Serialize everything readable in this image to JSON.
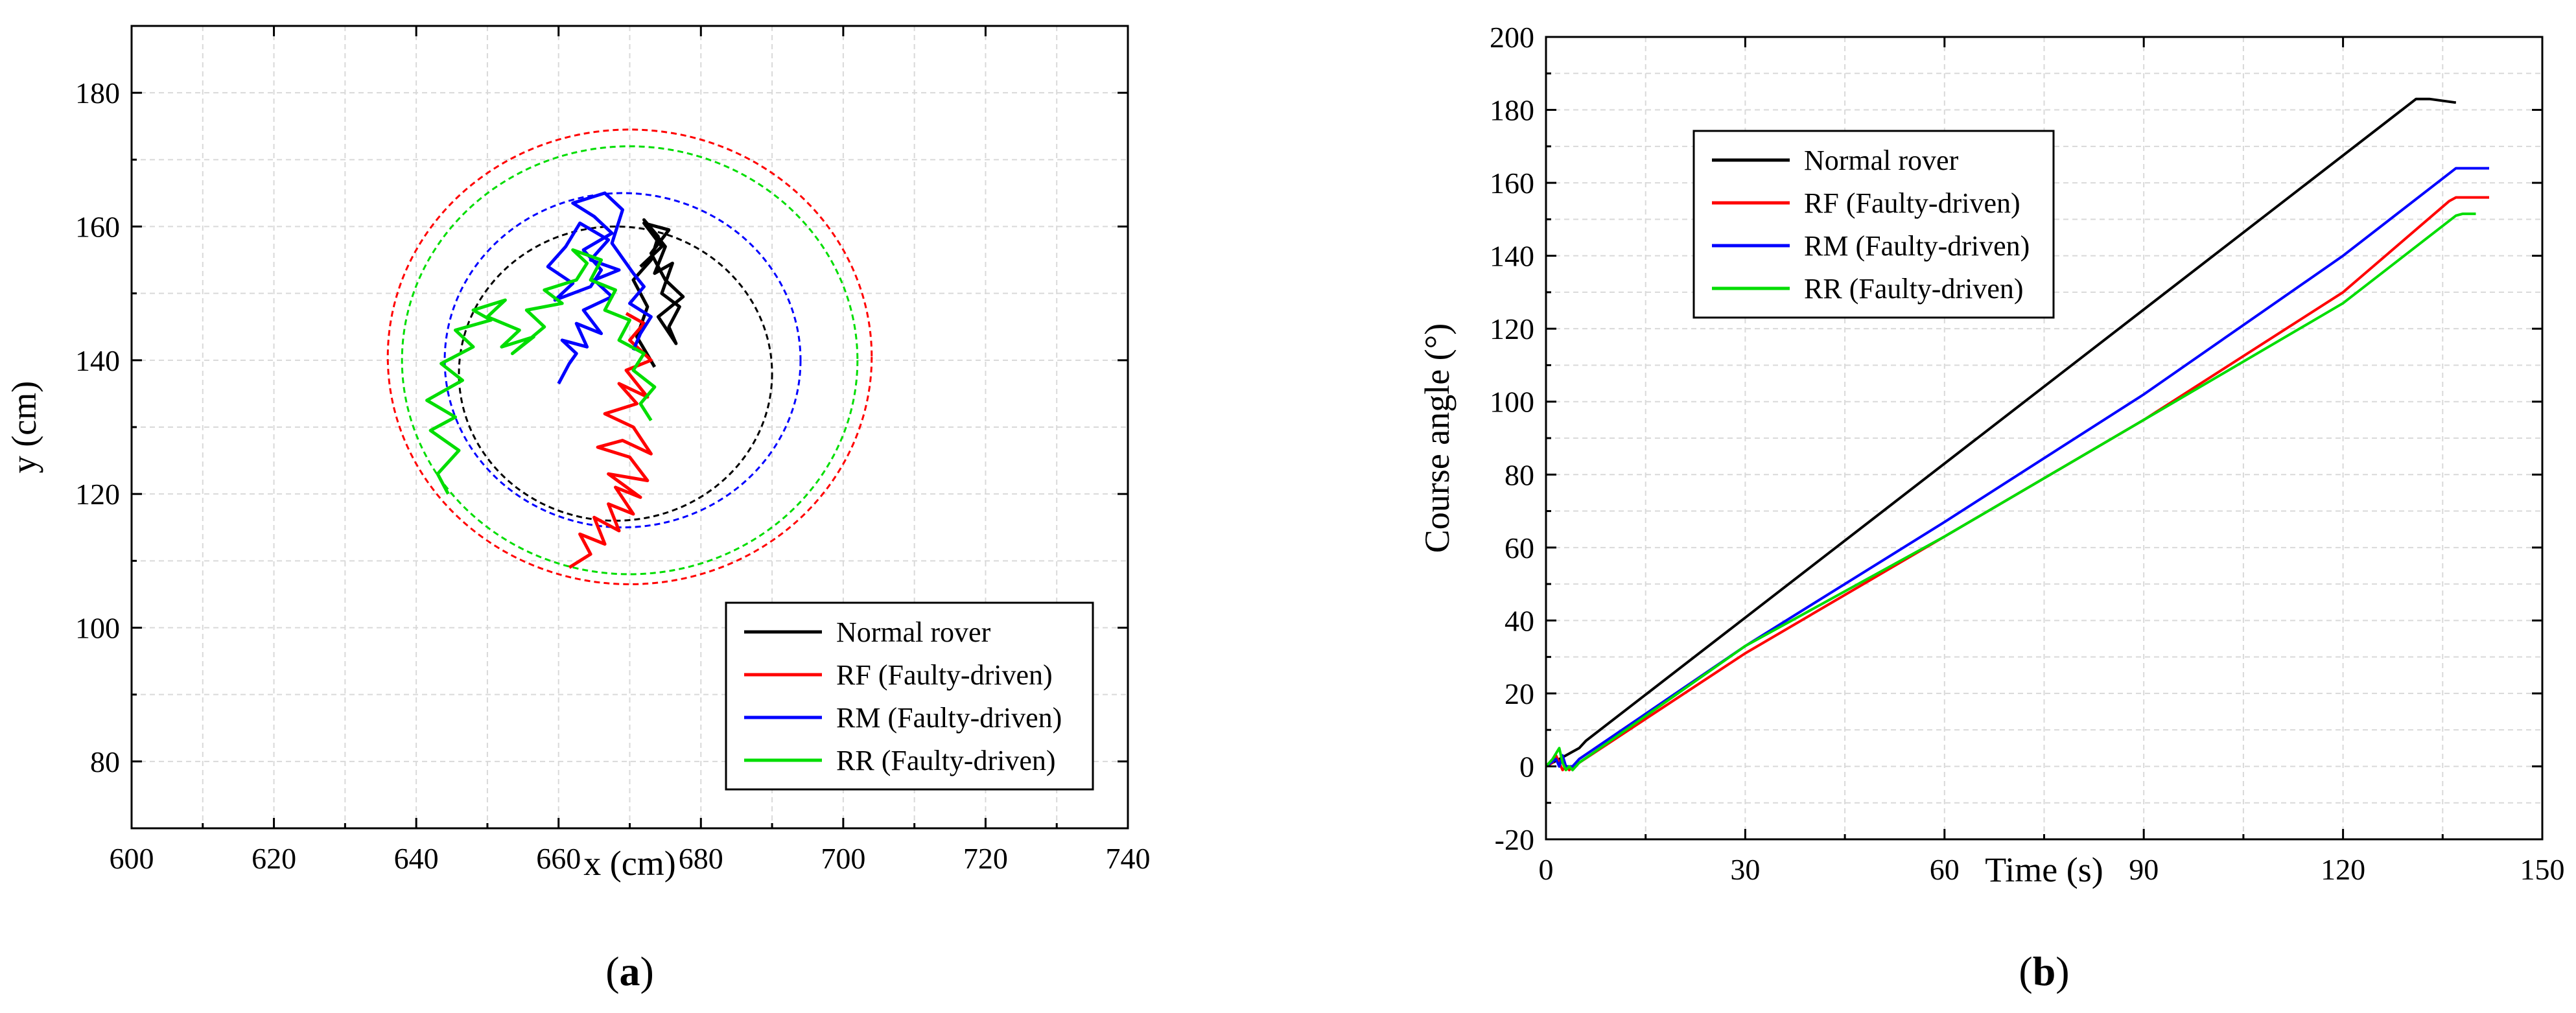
{
  "figure": {
    "colors": {
      "normal": "#000000",
      "rf": "#ff0000",
      "rm": "#0000ff",
      "rr": "#00dd00",
      "grid": "#d9d9d9",
      "axis": "#000000"
    }
  },
  "chart_data": [
    {
      "id": "a",
      "type": "line",
      "panel_label": "(a)",
      "panel_prefix": "(",
      "panel_letter": "a",
      "panel_suffix": ")",
      "title": "",
      "xlabel": "x (cm)",
      "ylabel": "y (cm)",
      "xlim": [
        600,
        740
      ],
      "ylim": [
        70,
        190
      ],
      "xticks": [
        600,
        620,
        640,
        660,
        680,
        700,
        720,
        740
      ],
      "yticks": [
        80,
        100,
        120,
        140,
        160,
        180
      ],
      "grid": true,
      "legend": {
        "position": "bottom-right",
        "entries": [
          "Normal rover",
          "RF (Faulty-driven)",
          "RM (Faulty-driven)",
          "RR (Faulty-driven)"
        ]
      },
      "circles": [
        {
          "name": "Normal rover boundary",
          "center": [
            668,
            138
          ],
          "radius": 22,
          "color": "#000000",
          "style": "dashed"
        },
        {
          "name": "RM boundary",
          "center": [
            669,
            140
          ],
          "radius": 25,
          "color": "#0000ff",
          "style": "dashed"
        },
        {
          "name": "RR boundary",
          "center": [
            670,
            140
          ],
          "radius": 32,
          "color": "#00dd00",
          "style": "dashed"
        },
        {
          "name": "RF boundary",
          "center": [
            670,
            140.5
          ],
          "radius": 34,
          "color": "#ff0000",
          "style": "dashed"
        }
      ],
      "series": [
        {
          "name": "Normal rover",
          "color": "#000000",
          "x": [
            673.5,
            671.0,
            672.5,
            670.5,
            673.0,
            674.0,
            672.0,
            675.0,
            673.5,
            676.0,
            674.5,
            677.0,
            675.5,
            676.5,
            674.0,
            677.5,
            675.0,
            673.0,
            675.5,
            672.0,
            674.5,
            671.5
          ],
          "y": [
            139.0,
            143.5,
            148.0,
            152.0,
            155.0,
            158.5,
            161.0,
            157.0,
            153.0,
            154.5,
            150.0,
            148.0,
            145.0,
            142.5,
            146.5,
            149.5,
            152.0,
            156.0,
            159.5,
            160.5,
            157.0,
            154.0
          ]
        },
        {
          "name": "RF (Faulty-driven)",
          "color": "#ff0000",
          "x": [
            661.5,
            664.5,
            663.0,
            666.5,
            665.0,
            668.5,
            667.0,
            670.5,
            668.0,
            671.5,
            667.0,
            672.5,
            670.0,
            665.5,
            669.0,
            673.0,
            670.5,
            666.5,
            671.0,
            668.5,
            672.5,
            669.5,
            673.0,
            670.0,
            672.0,
            669.5
          ],
          "y": [
            109.0,
            111.0,
            114.0,
            112.5,
            116.5,
            114.5,
            118.5,
            117.0,
            121.0,
            119.5,
            123.0,
            122.0,
            125.5,
            127.0,
            128.0,
            126.0,
            130.0,
            132.0,
            133.5,
            136.5,
            134.5,
            138.5,
            140.0,
            143.0,
            145.5,
            147.0
          ]
        },
        {
          "name": "RM (Faulty-driven)",
          "color": "#0000ff",
          "x": [
            660.0,
            661.5,
            662.5,
            660.5,
            664.0,
            662.5,
            666.0,
            663.5,
            667.5,
            665.0,
            668.5,
            664.5,
            667.0,
            663.0,
            661.0,
            658.5,
            662.0,
            659.5,
            664.5,
            666.0,
            663.5,
            667.5,
            665.0,
            662.0,
            666.5,
            669.0,
            667.5,
            670.5,
            672.0,
            670.0,
            673.0,
            671.5,
            670.5
          ],
          "y": [
            136.5,
            139.5,
            141.0,
            143.0,
            142.0,
            145.5,
            144.0,
            147.5,
            149.5,
            152.0,
            153.5,
            155.0,
            158.0,
            160.5,
            157.0,
            154.0,
            151.5,
            149.0,
            151.0,
            153.5,
            156.5,
            159.0,
            161.5,
            163.5,
            165.0,
            162.5,
            157.5,
            153.0,
            151.0,
            148.5,
            146.5,
            144.0,
            141.5
          ]
        },
        {
          "name": "RR (Faulty-driven)",
          "color": "#00dd00",
          "x": [
            644.5,
            643.0,
            646.0,
            642.0,
            645.5,
            641.5,
            646.5,
            643.5,
            648.0,
            645.5,
            650.5,
            648.0,
            652.5,
            650.0,
            654.5,
            652.0,
            656.5,
            653.5,
            658.0,
            655.5,
            660.5,
            658.0,
            662.5,
            664.0,
            662.0,
            666.0,
            664.5,
            668.0,
            666.5,
            670.0,
            668.5,
            672.0,
            670.5,
            673.5,
            671.5,
            673.0
          ],
          "y": [
            120.0,
            123.0,
            126.5,
            129.5,
            131.5,
            134.0,
            137.0,
            139.5,
            142.0,
            144.5,
            146.0,
            147.5,
            149.0,
            146.5,
            144.5,
            142.0,
            143.5,
            141.0,
            145.0,
            147.5,
            148.5,
            150.5,
            152.0,
            154.5,
            156.5,
            155.0,
            152.0,
            150.5,
            147.5,
            146.0,
            143.0,
            141.0,
            138.5,
            136.0,
            133.5,
            131.0
          ]
        }
      ]
    },
    {
      "id": "b",
      "type": "line",
      "panel_label": "(b)",
      "panel_prefix": "(",
      "panel_letter": "b",
      "panel_suffix": ")",
      "title": "",
      "xlabel": "Time (s)",
      "ylabel": "Course angle (°)",
      "xlim": [
        0,
        150
      ],
      "ylim": [
        -20,
        200
      ],
      "xticks": [
        0,
        30,
        60,
        90,
        120,
        150
      ],
      "yticks": [
        -20,
        0,
        20,
        40,
        60,
        80,
        100,
        120,
        140,
        160,
        180,
        200
      ],
      "grid": true,
      "legend": {
        "position": "top-left",
        "entries": [
          "Normal rover",
          "RF (Faulty-driven)",
          "RM (Faulty-driven)",
          "RR (Faulty-driven)"
        ]
      },
      "series": [
        {
          "name": "Normal rover",
          "color": "#000000",
          "x": [
            0,
            1,
            2,
            3,
            4,
            5,
            6,
            131,
            133,
            137
          ],
          "y": [
            0,
            1,
            2,
            3,
            4,
            5,
            7,
            183,
            183,
            182
          ]
        },
        {
          "name": "RF (Faulty-driven)",
          "color": "#ff0000",
          "x": [
            0,
            1,
            1.5,
            2,
            2.5,
            3,
            3.5,
            4,
            5,
            30,
            60,
            90,
            120,
            136,
            137,
            142
          ],
          "y": [
            0,
            1,
            3,
            1,
            -1,
            0,
            -1,
            0,
            1,
            31,
            63,
            95,
            130,
            155,
            156,
            156
          ]
        },
        {
          "name": "RM (Faulty-driven)",
          "color": "#0000ff",
          "x": [
            0,
            1.5,
            2,
            2.5,
            3,
            4,
            5,
            30,
            60,
            90,
            120,
            137,
            138,
            142
          ],
          "y": [
            0,
            2,
            0,
            3,
            0,
            0,
            2,
            33,
            67,
            102,
            140,
            164,
            164,
            164
          ]
        },
        {
          "name": "RR (Faulty-driven)",
          "color": "#00dd00",
          "x": [
            0,
            1,
            2,
            2.5,
            3,
            3.5,
            4,
            5,
            30,
            60,
            90,
            120,
            137,
            138,
            140
          ],
          "y": [
            0,
            2,
            5,
            1,
            -1,
            0,
            -1,
            1,
            33,
            63,
            95,
            127,
            151,
            151.5,
            151.5
          ]
        }
      ]
    }
  ]
}
